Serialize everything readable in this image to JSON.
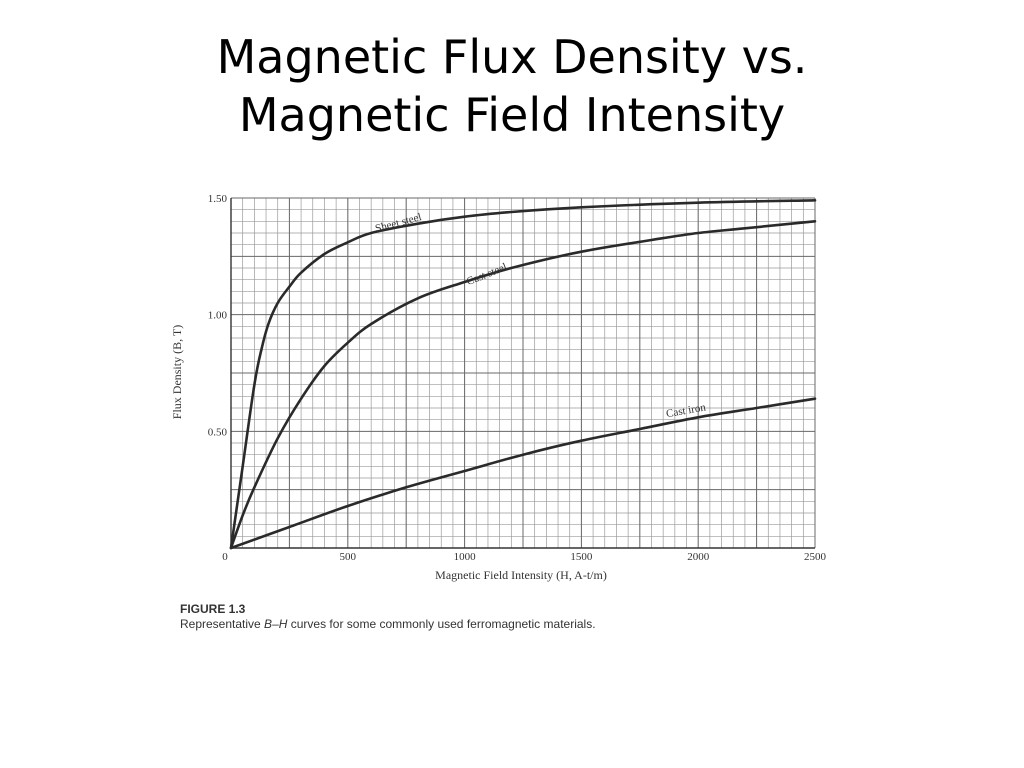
{
  "slide": {
    "title_line1": "Magnetic Flux Density vs.",
    "title_line2": "Magnetic Field Intensity"
  },
  "figure": {
    "label": "FIGURE 1.3",
    "caption_before": "Representative ",
    "caption_symbol1": "B",
    "caption_dash": "–",
    "caption_symbol2": "H",
    "caption_after": " curves for some commonly used ferromagnetic materials."
  },
  "chart_data": {
    "type": "line",
    "xlabel": "Magnetic Field Intensity (H, A-t/m)",
    "ylabel": "Flux Density (B, T)",
    "xlim": [
      0,
      2500
    ],
    "ylim": [
      0,
      1.5
    ],
    "x_ticks": [
      {
        "value": 0,
        "label": "0"
      },
      {
        "value": 500,
        "label": "500"
      },
      {
        "value": 1000,
        "label": "1000"
      },
      {
        "value": 1500,
        "label": "1500"
      },
      {
        "value": 2000,
        "label": "2000"
      },
      {
        "value": 2500,
        "label": "2500"
      }
    ],
    "y_ticks": [
      {
        "value": 0.5,
        "label": "0.50"
      },
      {
        "value": 1.0,
        "label": "1.00"
      },
      {
        "value": 1.5,
        "label": "1.50"
      }
    ],
    "grid": true,
    "series": [
      {
        "name": "Sheet steel",
        "x": [
          0,
          50,
          100,
          130,
          160,
          200,
          250,
          300,
          400,
          500,
          600,
          800,
          1000,
          1200,
          1500,
          2000,
          2500
        ],
        "y": [
          0,
          0.35,
          0.7,
          0.85,
          0.96,
          1.05,
          1.12,
          1.18,
          1.26,
          1.31,
          1.35,
          1.39,
          1.42,
          1.44,
          1.46,
          1.48,
          1.49
        ]
      },
      {
        "name": "Cast steel",
        "x": [
          0,
          50,
          100,
          200,
          300,
          400,
          500,
          600,
          800,
          1000,
          1200,
          1500,
          1800,
          2000,
          2200,
          2500
        ],
        "y": [
          0,
          0.14,
          0.26,
          0.47,
          0.64,
          0.78,
          0.88,
          0.96,
          1.07,
          1.14,
          1.2,
          1.27,
          1.32,
          1.35,
          1.37,
          1.4
        ]
      },
      {
        "name": "Cast iron",
        "x": [
          0,
          250,
          500,
          750,
          1000,
          1250,
          1500,
          1750,
          2000,
          2250,
          2500
        ],
        "y": [
          0,
          0.09,
          0.18,
          0.26,
          0.33,
          0.4,
          0.46,
          0.51,
          0.56,
          0.6,
          0.64
        ]
      }
    ],
    "annotations": [
      {
        "series": "Sheet steel",
        "text": "Sheet steel",
        "x": 720,
        "y": 1.38,
        "angle": -15
      },
      {
        "series": "Cast steel",
        "text": "Cast steel",
        "x": 1100,
        "y": 1.16,
        "angle": -22
      },
      {
        "series": "Cast iron",
        "text": "Cast iron",
        "x": 1950,
        "y": 0.575,
        "angle": -10
      }
    ]
  }
}
